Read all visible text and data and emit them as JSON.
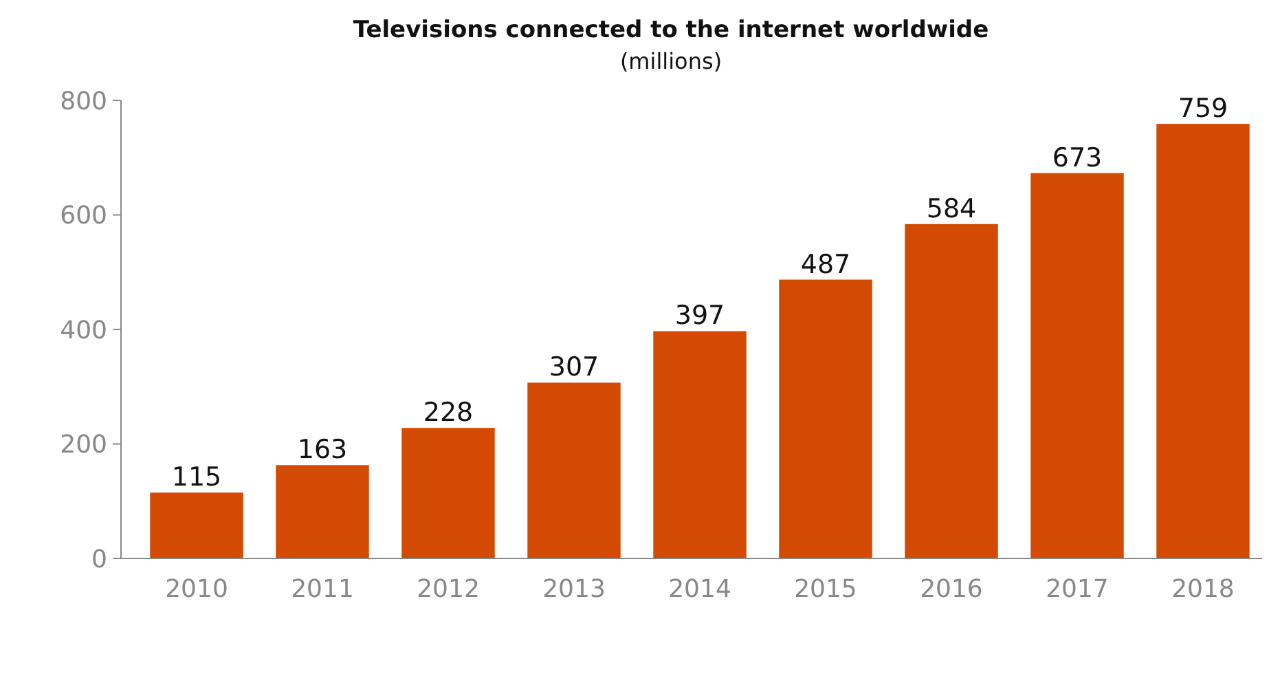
{
  "chart_data": {
    "type": "bar",
    "title": "Televisions connected to the internet worldwide",
    "subtitle": "(millions)",
    "categories": [
      "2010",
      "2011",
      "2012",
      "2013",
      "2014",
      "2015",
      "2016",
      "2017",
      "2018"
    ],
    "values": [
      115,
      163,
      228,
      307,
      397,
      487,
      584,
      673,
      759
    ],
    "color": "#d24a04",
    "ylim": [
      0,
      800
    ],
    "yticks": [
      0,
      200,
      400,
      600,
      800
    ],
    "data_labels": true,
    "grid": false
  }
}
